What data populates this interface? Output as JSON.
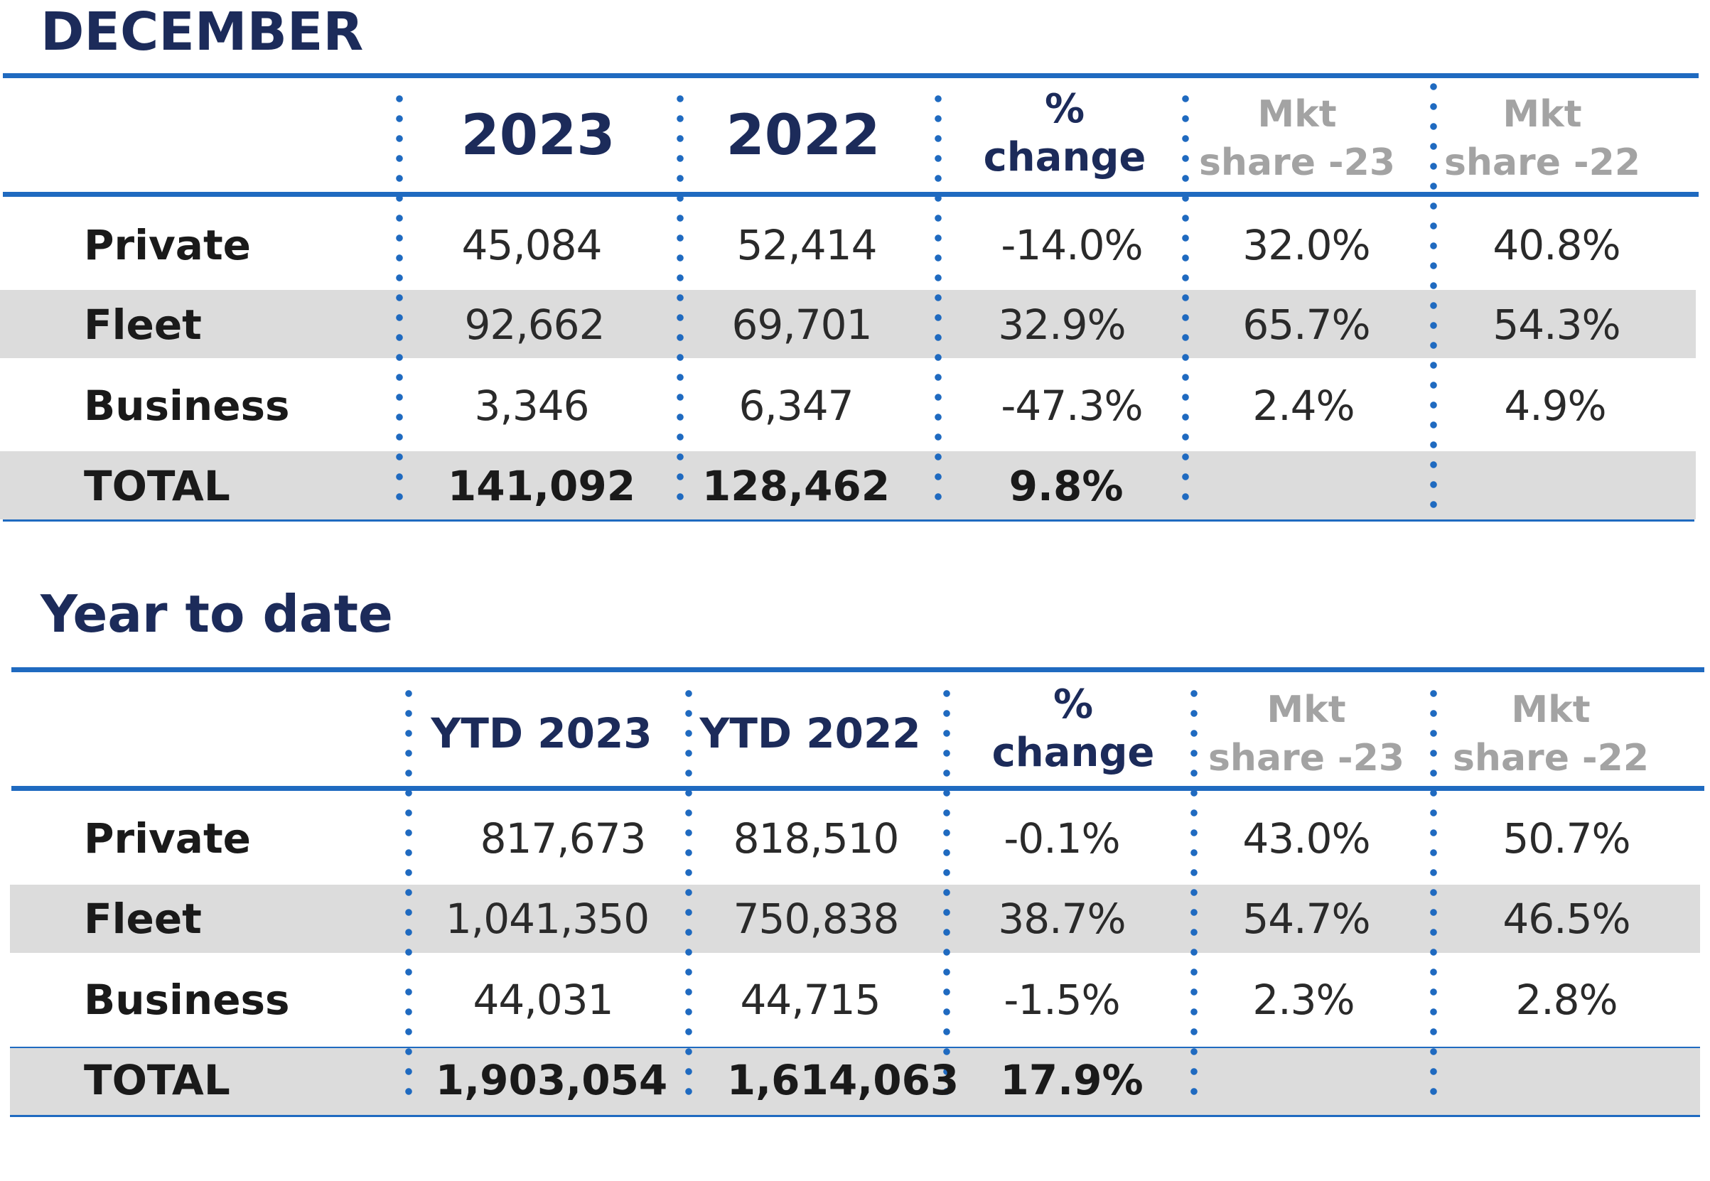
{
  "december": {
    "title": "DECEMBER",
    "headers": {
      "col1": "2023",
      "col2": "2022",
      "pct_line1": "%",
      "pct_line2": "change",
      "mkt23_line1": "Mkt",
      "mkt23_line2": "share -23",
      "mkt22_line1": "Mkt",
      "mkt22_line2": "share -22"
    },
    "rows": [
      {
        "label": "Private",
        "v2023": "45,084",
        "v2022": "52,414",
        "pct": "-14.0%",
        "mkt23": "32.0%",
        "mkt22": "40.8%"
      },
      {
        "label": "Fleet",
        "v2023": "92,662",
        "v2022": "69,701",
        "pct": "32.9%",
        "mkt23": "65.7%",
        "mkt22": "54.3%"
      },
      {
        "label": "Business",
        "v2023": "3,346",
        "v2022": "6,347",
        "pct": "-47.3%",
        "mkt23": "2.4%",
        "mkt22": "4.9%"
      }
    ],
    "total": {
      "label": "TOTAL",
      "v2023": "141,092",
      "v2022": "128,462",
      "pct": "9.8%"
    }
  },
  "ytd": {
    "title": "Year to date",
    "headers": {
      "col1": "YTD 2023",
      "col2": "YTD 2022",
      "pct_line1": "%",
      "pct_line2": "change",
      "mkt23_line1": "Mkt",
      "mkt23_line2": "share -23",
      "mkt22_line1": "Mkt",
      "mkt22_line2": "share -22"
    },
    "rows": [
      {
        "label": "Private",
        "v2023": "817,673",
        "v2022": "818,510",
        "pct": "-0.1%",
        "mkt23": "43.0%",
        "mkt22": "50.7%"
      },
      {
        "label": "Fleet",
        "v2023": "1,041,350",
        "v2022": "750,838",
        "pct": "38.7%",
        "mkt23": "54.7%",
        "mkt22": "46.5%"
      },
      {
        "label": "Business",
        "v2023": "44,031",
        "v2022": "44,715",
        "pct": "-1.5%",
        "mkt23": "2.3%",
        "mkt22": "2.8%"
      }
    ],
    "total": {
      "label": "TOTAL",
      "v2023": "1,903,054",
      "v2022": "1,614,063",
      "pct": "17.9%"
    }
  }
}
